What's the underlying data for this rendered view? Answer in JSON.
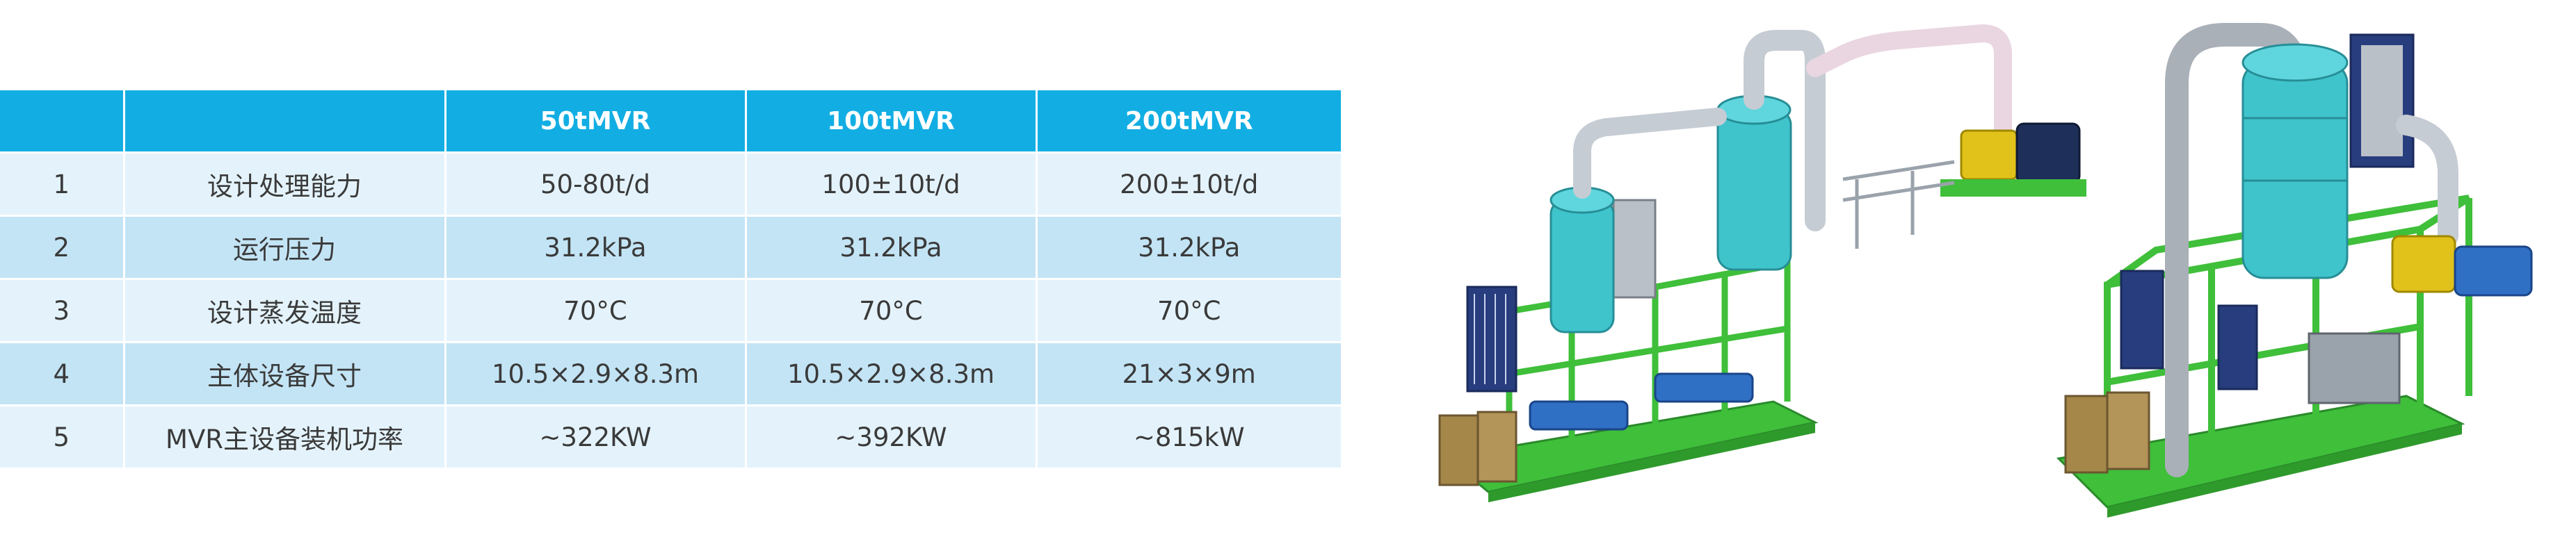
{
  "table": {
    "headers": [
      "",
      "",
      "50tMVR",
      "100tMVR",
      "200tMVR"
    ],
    "rows": [
      {
        "no": "1",
        "item": "设计处理能力",
        "v50": "50-80t/d",
        "v100": "100±10t/d",
        "v200": "200±10t/d"
      },
      {
        "no": "2",
        "item": "运行压力",
        "v50": "31.2kPa",
        "v100": "31.2kPa",
        "v200": "31.2kPa"
      },
      {
        "no": "3",
        "item": "设计蒸发温度",
        "v50": "70°C",
        "v100": "70°C",
        "v200": "70°C"
      },
      {
        "no": "4",
        "item": "主体设备尺寸",
        "v50": "10.5×2.9×8.3m",
        "v100": "10.5×2.9×8.3m",
        "v200": "21×3×9m"
      },
      {
        "no": "5",
        "item": "MVR主设备装机功率",
        "v50": "~322KW",
        "v100": "~392KW",
        "v200": "~815kW"
      }
    ]
  },
  "illustrations": {
    "equipment_a": "mvr-evaporator-skid-two-tower",
    "equipment_b": "mvr-evaporator-skid-single-tower"
  },
  "colors": {
    "header_bg": "#12aee3",
    "row_light": "#e4f3fb",
    "row_dark": "#c3e4f5",
    "frame_green": "#3fbf3a",
    "tank_cyan": "#3fc4cc"
  }
}
